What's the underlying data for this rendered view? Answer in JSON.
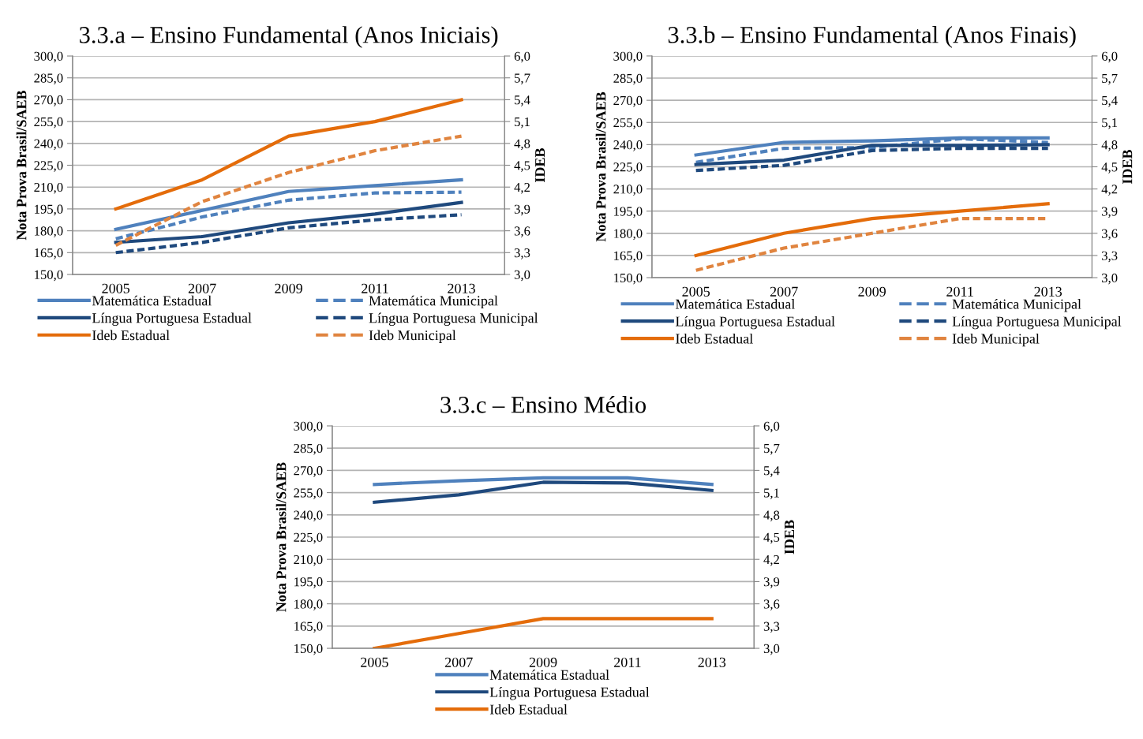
{
  "chart_data": [
    {
      "type": "line",
      "title": "3.3.a – Ensino Fundamental (Anos Iniciais)",
      "ylabel": "Nota Prova Brasil/SAEB",
      "y2label": "IDEB",
      "categories": [
        "2005",
        "2007",
        "2009",
        "2011",
        "2013"
      ],
      "ylim": [
        150,
        300
      ],
      "yticks": [
        {
          "value": 150,
          "label": "150,0"
        },
        {
          "value": 165,
          "label": "165,0"
        },
        {
          "value": 180,
          "label": "180,0"
        },
        {
          "value": 195,
          "label": "195,0"
        },
        {
          "value": 210,
          "label": "210,0"
        },
        {
          "value": 225,
          "label": "225,0"
        },
        {
          "value": 240,
          "label": "240,0"
        },
        {
          "value": 255,
          "label": "255,0"
        },
        {
          "value": 270,
          "label": "270,0"
        },
        {
          "value": 285,
          "label": "285,0"
        },
        {
          "value": 300,
          "label": "300,0"
        }
      ],
      "y2lim": [
        3.0,
        6.0
      ],
      "y2ticks": [
        {
          "value": 3.0,
          "label": "3,0"
        },
        {
          "value": 3.3,
          "label": "3,3"
        },
        {
          "value": 3.6,
          "label": "3,6"
        },
        {
          "value": 3.9,
          "label": "3,9"
        },
        {
          "value": 4.2,
          "label": "4,2"
        },
        {
          "value": 4.5,
          "label": "4,5"
        },
        {
          "value": 4.8,
          "label": "4,8"
        },
        {
          "value": 5.1,
          "label": "5,1"
        },
        {
          "value": 5.4,
          "label": "5,4"
        },
        {
          "value": 5.7,
          "label": "5,7"
        },
        {
          "value": 6.0,
          "label": "6,0"
        }
      ],
      "grid": "y",
      "legend": "bottom",
      "series": [
        {
          "name": "Matemática Estadual",
          "color": "#4f81bd",
          "line_style": "solid",
          "values": [
            181,
            194,
            207,
            211,
            215
          ]
        },
        {
          "name": "Matemática Municipal",
          "color": "#4f81bd",
          "line_style": "dashed",
          "values": [
            174.5,
            189.5,
            201,
            206,
            206.5
          ]
        },
        {
          "name": "Língua Portuguesa Estadual",
          "color": "#1f497d",
          "line_style": "solid",
          "values": [
            172,
            176,
            185.5,
            191.5,
            199.5
          ]
        },
        {
          "name": "Língua Portuguesa Municipal",
          "color": "#1f497d",
          "line_style": "dashed",
          "values": [
            165,
            172,
            182,
            187.5,
            191
          ]
        },
        {
          "name": "Ideb Estadual",
          "color": "#e46c0a",
          "line_style": "solid",
          "axis": "y2",
          "values": [
            3.9,
            4.3,
            4.9,
            5.1,
            5.4
          ]
        },
        {
          "name": "Ideb Municipal",
          "color": "#e0843f",
          "line_style": "dashed",
          "axis": "y2",
          "values": [
            3.4,
            4.0,
            4.4,
            4.7,
            4.9
          ]
        }
      ]
    },
    {
      "type": "line",
      "title": "3.3.b – Ensino Fundamental (Anos Finais)",
      "ylabel": "Nota Prova Brasil/SAEB",
      "y2label": "IDEB",
      "categories": [
        "2005",
        "2007",
        "2009",
        "2011",
        "2013"
      ],
      "ylim": [
        150,
        300
      ],
      "yticks": [
        {
          "value": 150,
          "label": "150,0"
        },
        {
          "value": 165,
          "label": "165,0"
        },
        {
          "value": 180,
          "label": "180,0"
        },
        {
          "value": 195,
          "label": "195,0"
        },
        {
          "value": 210,
          "label": "210,0"
        },
        {
          "value": 225,
          "label": "225,0"
        },
        {
          "value": 240,
          "label": "240,0"
        },
        {
          "value": 255,
          "label": "255,0"
        },
        {
          "value": 270,
          "label": "270,0"
        },
        {
          "value": 285,
          "label": "285,0"
        },
        {
          "value": 300,
          "label": "300,0"
        }
      ],
      "y2lim": [
        3.0,
        6.0
      ],
      "y2ticks": [
        {
          "value": 3.0,
          "label": "3,0"
        },
        {
          "value": 3.3,
          "label": "3,3"
        },
        {
          "value": 3.6,
          "label": "3,6"
        },
        {
          "value": 3.9,
          "label": "3,9"
        },
        {
          "value": 4.2,
          "label": "4,2"
        },
        {
          "value": 4.5,
          "label": "4,5"
        },
        {
          "value": 4.8,
          "label": "4,8"
        },
        {
          "value": 5.1,
          "label": "5,1"
        },
        {
          "value": 5.4,
          "label": "5,4"
        },
        {
          "value": 5.7,
          "label": "5,7"
        },
        {
          "value": 6.0,
          "label": "6,0"
        }
      ],
      "grid": "y",
      "legend": "bottom",
      "series": [
        {
          "name": "Matemática Estadual",
          "color": "#4f81bd",
          "line_style": "solid",
          "values": [
            233,
            241.5,
            242.5,
            244.5,
            244.5
          ]
        },
        {
          "name": "Matemática Municipal",
          "color": "#4f81bd",
          "line_style": "dashed",
          "values": [
            228,
            237.5,
            238,
            244,
            241.5
          ]
        },
        {
          "name": "Língua Portuguesa Estadual",
          "color": "#1f497d",
          "line_style": "solid",
          "values": [
            226.5,
            229.5,
            239.5,
            239.5,
            240
          ]
        },
        {
          "name": "Língua Portuguesa Municipal",
          "color": "#1f497d",
          "line_style": "dashed",
          "values": [
            222.5,
            226,
            236,
            237.5,
            237.5
          ]
        },
        {
          "name": "Ideb Estadual",
          "color": "#e46c0a",
          "line_style": "solid",
          "axis": "y2",
          "values": [
            3.3,
            3.6,
            3.8,
            3.9,
            4.0
          ]
        },
        {
          "name": "Ideb Municipal",
          "color": "#e0843f",
          "line_style": "dashed",
          "axis": "y2",
          "values": [
            3.1,
            3.4,
            3.6,
            3.8,
            3.8
          ]
        }
      ]
    },
    {
      "type": "line",
      "title": "3.3.c – Ensino Médio",
      "ylabel": "Nota Prova Brasil/SAEB",
      "y2label": "IDEB",
      "categories": [
        "2005",
        "2007",
        "2009",
        "2011",
        "2013"
      ],
      "ylim": [
        150,
        300
      ],
      "yticks": [
        {
          "value": 150,
          "label": "150,0"
        },
        {
          "value": 165,
          "label": "165,0"
        },
        {
          "value": 180,
          "label": "180,0"
        },
        {
          "value": 195,
          "label": "195,0"
        },
        {
          "value": 210,
          "label": "210,0"
        },
        {
          "value": 225,
          "label": "225,0"
        },
        {
          "value": 240,
          "label": "240,0"
        },
        {
          "value": 255,
          "label": "255,0"
        },
        {
          "value": 270,
          "label": "270,0"
        },
        {
          "value": 285,
          "label": "285,0"
        },
        {
          "value": 300,
          "label": "300,0"
        }
      ],
      "y2lim": [
        3.0,
        6.0
      ],
      "y2ticks": [
        {
          "value": 3.0,
          "label": "3,0"
        },
        {
          "value": 3.3,
          "label": "3,3"
        },
        {
          "value": 3.6,
          "label": "3,6"
        },
        {
          "value": 3.9,
          "label": "3,9"
        },
        {
          "value": 4.2,
          "label": "4,2"
        },
        {
          "value": 4.5,
          "label": "4,5"
        },
        {
          "value": 4.8,
          "label": "4,8"
        },
        {
          "value": 5.1,
          "label": "5,1"
        },
        {
          "value": 5.4,
          "label": "5,4"
        },
        {
          "value": 5.7,
          "label": "5,7"
        },
        {
          "value": 6.0,
          "label": "6,0"
        }
      ],
      "grid": "y",
      "legend": "bottom",
      "series": [
        {
          "name": "Matemática Estadual",
          "color": "#4f81bd",
          "line_style": "solid",
          "values": [
            260.5,
            263,
            265,
            265,
            260.5
          ]
        },
        {
          "name": "Língua Portuguesa Estadual",
          "color": "#1f497d",
          "line_style": "solid",
          "values": [
            248.5,
            253.5,
            262,
            261.5,
            256.5
          ]
        },
        {
          "name": "Ideb Estadual",
          "color": "#e46c0a",
          "line_style": "solid",
          "axis": "y2",
          "values": [
            3.0,
            3.2,
            3.4,
            3.4,
            3.4
          ]
        }
      ]
    }
  ]
}
